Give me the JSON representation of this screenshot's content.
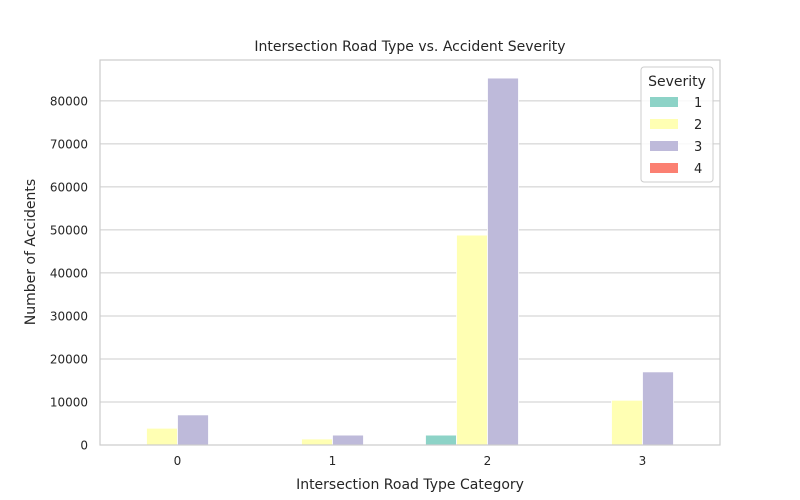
{
  "chart_data": {
    "type": "bar",
    "title": "Intersection Road Type vs. Accident Severity",
    "xlabel": "Intersection Road Type Category",
    "ylabel": "Number of Accidents",
    "categories": [
      "0",
      "1",
      "2",
      "3"
    ],
    "ylim": [
      0,
      89500
    ],
    "yticks": [
      0,
      10000,
      20000,
      30000,
      40000,
      50000,
      60000,
      70000,
      80000
    ],
    "ytick_labels": [
      "0",
      "10000",
      "20000",
      "30000",
      "40000",
      "50000",
      "60000",
      "70000",
      "80000"
    ],
    "grid": true,
    "legend": {
      "title": "Severity",
      "placement": "top-right"
    },
    "series": [
      {
        "name": "1",
        "color": "#8dd3c7",
        "values": [
          100,
          50,
          2300,
          150
        ]
      },
      {
        "name": "2",
        "color": "#ffffb3",
        "values": [
          3900,
          1400,
          48800,
          10400
        ]
      },
      {
        "name": "3",
        "color": "#bebada",
        "values": [
          7000,
          2300,
          85300,
          17000
        ]
      },
      {
        "name": "4",
        "color": "#fb8072",
        "values": [
          0,
          0,
          0,
          0
        ]
      }
    ]
  }
}
